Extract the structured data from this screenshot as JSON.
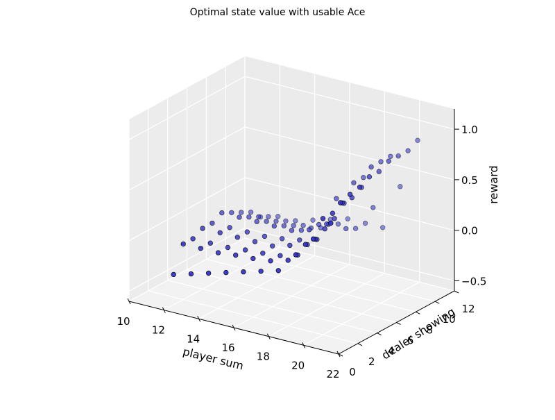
{
  "chart_data": {
    "type": "scatter",
    "projection": "3d",
    "title": "Optimal state value with usable Ace",
    "xlabel": "player sum",
    "ylabel": "dealer showing",
    "zlabel": "reward",
    "xlim": [
      10,
      22
    ],
    "ylim": [
      0,
      12
    ],
    "zlim": [
      -0.6,
      1.2
    ],
    "xticks": [
      "10",
      "12",
      "14",
      "16",
      "18",
      "20",
      "22"
    ],
    "yticks": [
      "0",
      "2",
      "4",
      "6",
      "8",
      "10",
      "12"
    ],
    "zticks": [
      "−0.5",
      "0.0",
      "0.5",
      "1.0"
    ],
    "grid": true,
    "marker_color": "#3333cc",
    "x": [
      12,
      13,
      14,
      15,
      16,
      17,
      18,
      19,
      20,
      21
    ],
    "y": [
      1,
      2,
      3,
      4,
      5,
      6,
      7,
      8,
      9,
      10
    ],
    "z": [
      [
        -0.3,
        -0.25,
        -0.2,
        -0.15,
        -0.1,
        -0.05,
        0.0,
        0.2,
        0.4,
        0.6
      ],
      [
        -0.05,
        -0.05,
        -0.05,
        -0.03,
        -0.02,
        0.0,
        0.05,
        0.25,
        0.55,
        0.75
      ],
      [
        -0.05,
        -0.05,
        -0.05,
        -0.03,
        -0.02,
        0.0,
        0.05,
        0.25,
        0.55,
        0.78
      ],
      [
        0.0,
        0.0,
        0.0,
        0.0,
        0.0,
        0.05,
        0.1,
        0.3,
        0.6,
        0.8
      ],
      [
        0.0,
        0.0,
        0.0,
        0.0,
        0.02,
        0.05,
        0.1,
        0.35,
        0.6,
        0.85
      ],
      [
        0.05,
        0.05,
        0.05,
        0.05,
        0.05,
        0.1,
        0.2,
        0.45,
        0.65,
        0.85
      ],
      [
        0.0,
        0.0,
        0.0,
        0.0,
        0.0,
        0.1,
        0.4,
        0.6,
        0.8,
        0.9
      ],
      [
        -0.05,
        -0.05,
        -0.05,
        -0.05,
        -0.03,
        0.05,
        0.05,
        0.6,
        0.8,
        0.9
      ],
      [
        -0.1,
        -0.1,
        -0.1,
        -0.1,
        -0.08,
        0.0,
        0.0,
        0.25,
        0.8,
        0.9
      ],
      [
        -0.2,
        -0.15,
        -0.15,
        -0.1,
        -0.05,
        0.0,
        0.0,
        0.0,
        0.45,
        0.95
      ]
    ]
  }
}
